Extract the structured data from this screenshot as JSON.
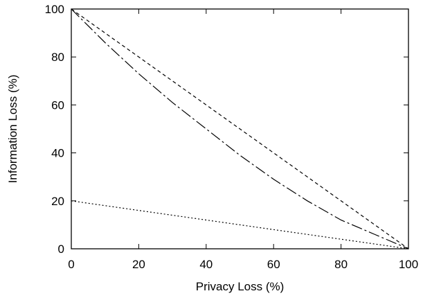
{
  "chart_data": {
    "type": "line",
    "xlabel": "Privacy Loss (%)",
    "ylabel": "Information Loss (%)",
    "xlim": [
      0,
      100
    ],
    "ylim": [
      0,
      100
    ],
    "xticks": [
      "0",
      "20",
      "40",
      "60",
      "80",
      "100"
    ],
    "yticks": [
      "0",
      "20",
      "40",
      "60",
      "80",
      "100"
    ],
    "grid": false,
    "legend": "none",
    "series": [
      {
        "style": "dashed",
        "x": [
          0,
          100
        ],
        "y": [
          100,
          0
        ]
      },
      {
        "style": "dash-dot",
        "x": [
          0,
          10,
          20,
          30,
          40,
          50,
          60,
          70,
          80,
          90,
          100
        ],
        "y": [
          100,
          86,
          73,
          61,
          50,
          39,
          29,
          20,
          12,
          6,
          0
        ]
      },
      {
        "style": "dotted",
        "x": [
          0,
          100
        ],
        "y": [
          20,
          0
        ]
      }
    ]
  }
}
